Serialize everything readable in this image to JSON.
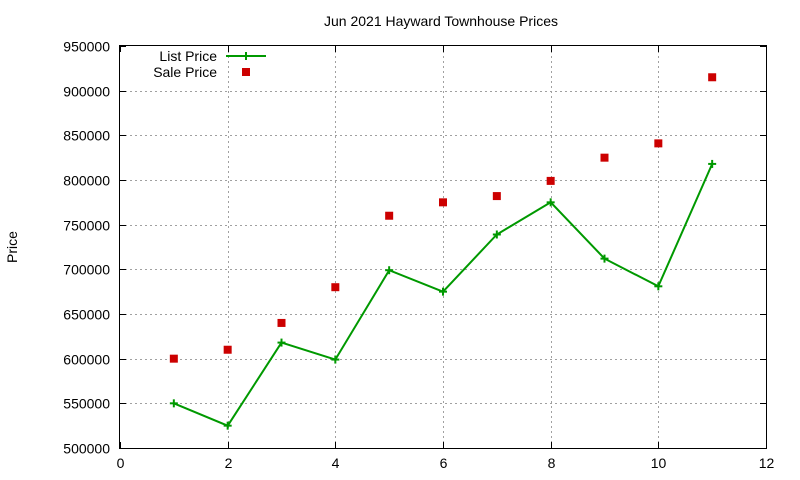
{
  "chart_data": {
    "type": "line",
    "title": "Jun 2021 Hayward Townhouse Prices",
    "ylabel": "Price",
    "xlabel": "",
    "xlim": [
      0,
      12
    ],
    "ylim": [
      500000,
      950000
    ],
    "x_ticks": [
      0,
      2,
      4,
      6,
      8,
      10,
      12
    ],
    "y_ticks": [
      500000,
      550000,
      600000,
      650000,
      700000,
      750000,
      800000,
      850000,
      900000,
      950000
    ],
    "grid": true,
    "legend_position": "top-left",
    "series": [
      {
        "name": "List Price",
        "style": "line-with-plus-markers",
        "color": "#009900",
        "x": [
          1,
          2,
          3,
          4,
          5,
          6,
          7,
          8,
          9,
          10,
          11
        ],
        "y": [
          550000,
          525000,
          618000,
          599000,
          699000,
          675000,
          739000,
          775000,
          712000,
          681000,
          818000
        ]
      },
      {
        "name": "Sale Price",
        "style": "square-markers",
        "color": "#cc0000",
        "x": [
          1,
          2,
          3,
          4,
          5,
          6,
          7,
          8,
          9,
          10,
          11
        ],
        "y": [
          600000,
          610000,
          640000,
          680000,
          760000,
          775000,
          782000,
          799000,
          825000,
          841000,
          915000
        ]
      }
    ]
  }
}
